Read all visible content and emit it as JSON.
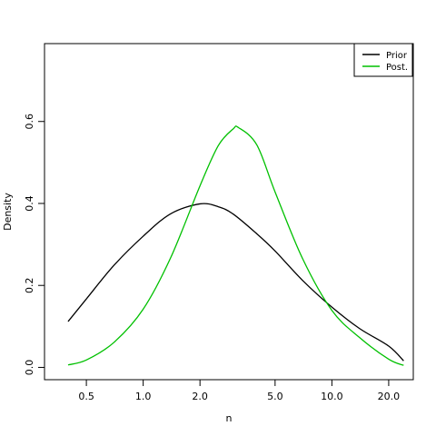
{
  "chart_data": {
    "type": "line",
    "xlabel": "n",
    "ylabel": "Density",
    "x_scale": "log",
    "xlim": [
      0.3,
      27
    ],
    "ylim": [
      -0.03,
      0.79
    ],
    "x_ticks": [
      0.5,
      1.0,
      2.0,
      5.0,
      10.0,
      20.0
    ],
    "x_tick_labels": [
      "0.5",
      "1.0",
      "2.0",
      "5.0",
      "10.0",
      "20.0"
    ],
    "y_ticks": [
      0.0,
      0.2,
      0.4,
      0.6
    ],
    "y_tick_labels": [
      "0.0",
      "0.2",
      "0.4",
      "0.6"
    ],
    "grid": false,
    "legend": {
      "placement": "top-right"
    },
    "series": [
      {
        "name": "Prior",
        "color": "#000000",
        "x": [
          0.4,
          0.5,
          0.7,
          1.0,
          1.4,
          2.0,
          2.5,
          3.0,
          4.0,
          5.0,
          7.0,
          10.0,
          14.0,
          20.0,
          24.0
        ],
        "y": [
          0.112,
          0.167,
          0.249,
          0.32,
          0.375,
          0.399,
          0.392,
          0.374,
          0.326,
          0.284,
          0.212,
          0.147,
          0.095,
          0.052,
          0.016
        ]
      },
      {
        "name": "Post.",
        "color": "#00c000",
        "x": [
          0.4,
          0.5,
          0.7,
          1.0,
          1.4,
          2.0,
          2.5,
          3.0,
          3.2,
          4.0,
          5.0,
          7.0,
          10.0,
          14.0,
          20.0,
          24.0
        ],
        "y": [
          0.006,
          0.018,
          0.061,
          0.142,
          0.268,
          0.443,
          0.541,
          0.582,
          0.585,
          0.543,
          0.428,
          0.265,
          0.139,
          0.073,
          0.02,
          0.005
        ]
      }
    ]
  }
}
